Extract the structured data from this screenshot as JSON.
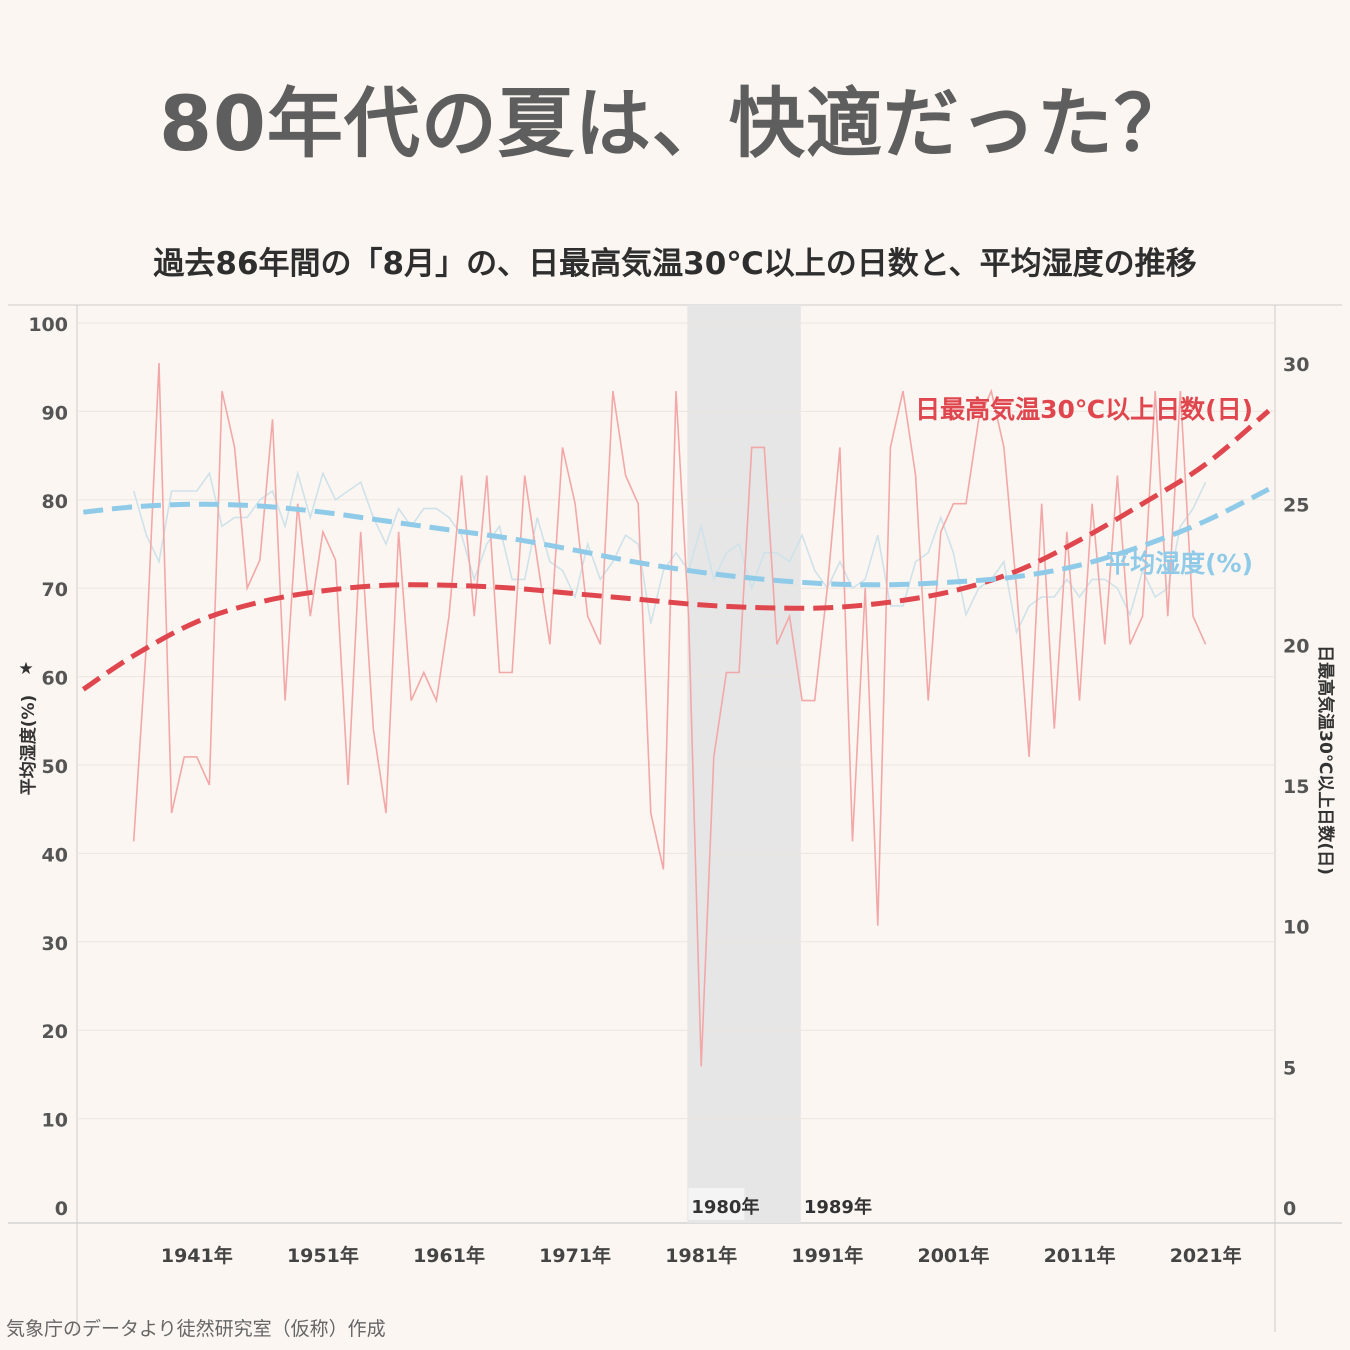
{
  "title": "80年代の夏は、快適だった？",
  "subtitle": "過去86年間の「8月」の、日最高気温30℃以上の日数と、平均湿度の推移",
  "credit": "気象庁のデータより徒然研究室（仮称）作成",
  "colors": {
    "days_line": "#f2a8a8",
    "days_trend": "#e0464e",
    "humidity_line": "#cfe2ea",
    "humidity_trend": "#8fcbe8",
    "band": "#e6e6e6",
    "grid": "#ece6e0",
    "axis": "#cccccc"
  },
  "chart_data": {
    "type": "line",
    "x_tick_years": [
      1941,
      1951,
      1961,
      1971,
      1981,
      1991,
      2001,
      2011,
      2021
    ],
    "x_tick_labels": [
      "1941年",
      "1951年",
      "1961年",
      "1971年",
      "1981年",
      "1991年",
      "2001年",
      "2011年",
      "2021年"
    ],
    "x_range": [
      1931.5,
      2026.5
    ],
    "highlight_band": {
      "start": 1980,
      "end": 1989,
      "labels": [
        "1980年",
        "1989年"
      ]
    },
    "y_left": {
      "label": "平均湿度(%)",
      "range": [
        0,
        100
      ],
      "ticks": [
        0,
        10,
        20,
        30,
        40,
        50,
        60,
        70,
        80,
        90,
        100
      ]
    },
    "y_right": {
      "label": "日最高気温30℃以上日数(日)",
      "range": [
        0,
        30
      ],
      "ticks": [
        0,
        5,
        10,
        15,
        20,
        25,
        30
      ]
    },
    "years_start": 1936,
    "years_end": 2021,
    "series": [
      {
        "name": "日最高気温30℃以上日数(日)",
        "axis": "right",
        "values": [
          13,
          20,
          30,
          14,
          16,
          16,
          15,
          29,
          27,
          22,
          23,
          28,
          18,
          25,
          21,
          24,
          23,
          15,
          24,
          17,
          14,
          24,
          18,
          19,
          18,
          21,
          26,
          21,
          26,
          19,
          19,
          26,
          23,
          20,
          27,
          25,
          21,
          20,
          29,
          26,
          25,
          14,
          12,
          29,
          21,
          5,
          16,
          19,
          19,
          27,
          27,
          20,
          21,
          18,
          18,
          22,
          27,
          13,
          22,
          10,
          27,
          29,
          26,
          18,
          24,
          25,
          25,
          28,
          29,
          27,
          22,
          16,
          25,
          17,
          24,
          18,
          25,
          20,
          26,
          20,
          21,
          29,
          21,
          29,
          21,
          20
        ]
      },
      {
        "name": "平均湿度(%)",
        "axis": "left",
        "values": [
          81,
          76,
          73,
          81,
          81,
          81,
          83,
          77,
          78,
          78,
          80,
          81,
          77,
          83,
          78,
          83,
          80,
          81,
          82,
          78,
          75,
          79,
          77,
          79,
          79,
          78,
          76,
          71,
          75,
          77,
          71,
          71,
          78,
          73,
          72,
          69,
          75,
          71,
          73,
          76,
          75,
          66,
          72,
          74,
          72,
          77,
          71,
          74,
          75,
          70,
          74,
          74,
          73,
          76,
          72,
          70,
          73,
          70,
          71,
          76,
          68,
          68,
          73,
          74,
          78,
          74,
          67,
          70,
          71,
          73,
          65,
          68,
          69,
          69,
          71,
          69,
          71,
          71,
          70,
          67,
          72,
          69,
          70,
          77,
          79,
          82
        ]
      }
    ],
    "trends": [
      {
        "name": "日最高気温30℃以上日数(日)",
        "axis": "right",
        "x": [
          1932,
          1936,
          1941,
          1946,
          1951,
          1956,
          1961,
          1966,
          1971,
          1976,
          1981,
          1986,
          1991,
          1996,
          2001,
          2006,
          2011,
          2016,
          2021,
          2026
        ],
        "values": [
          18.4,
          19.6,
          20.8,
          21.5,
          21.9,
          22.1,
          22.1,
          22.0,
          21.8,
          21.6,
          21.4,
          21.3,
          21.3,
          21.5,
          21.9,
          22.6,
          23.7,
          25.0,
          26.4,
          28.3
        ]
      },
      {
        "name": "平均湿度(%)",
        "axis": "left",
        "x": [
          1932,
          1936,
          1941,
          1946,
          1951,
          1956,
          1961,
          1966,
          1971,
          1976,
          1981,
          1986,
          1991,
          1996,
          2001,
          2006,
          2011,
          2016,
          2021,
          2026
        ],
        "values": [
          78.6,
          79.2,
          79.5,
          79.3,
          78.6,
          77.6,
          76.6,
          75.6,
          74.3,
          72.9,
          71.8,
          71.0,
          70.5,
          70.4,
          70.7,
          71.3,
          72.6,
          74.8,
          77.6,
          81.2
        ]
      }
    ],
    "series_labels": [
      "日最高気温30℃以上日数(日)",
      "平均湿度(%)"
    ]
  }
}
